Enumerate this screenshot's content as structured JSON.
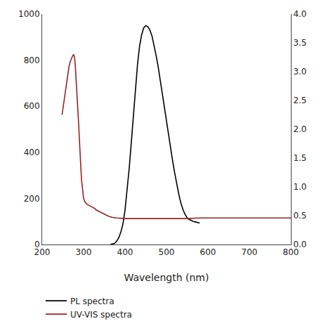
{
  "chart_data": {
    "type": "line",
    "x_label": "Wavelength (nm)",
    "xlim": [
      200,
      800
    ],
    "xticks": [
      200,
      300,
      400,
      500,
      600,
      700,
      800
    ],
    "ylim": [
      0,
      1000
    ],
    "yticks": [
      0,
      200,
      400,
      600,
      800,
      1000
    ],
    "y2lim": [
      0.0,
      4.0
    ],
    "y2ticks": [
      {
        "value": 0.0,
        "label": "0.0"
      },
      0.5,
      {
        "value": 1.0,
        "label": "1.0"
      },
      1.5,
      {
        "value": 2.0,
        "label": "2.0"
      },
      2.5,
      {
        "value": 3.0,
        "label": "3.0"
      },
      3.5,
      {
        "value": 4.0,
        "label": "4.0"
      }
    ],
    "grid": false,
    "legend": "lower left",
    "series": [
      {
        "name": "PL spectra",
        "color": "#000000",
        "x": [
          365,
          370,
          375,
          380,
          385,
          390,
          395,
          400,
          405,
          410,
          415,
          420,
          425,
          430,
          435,
          440,
          445,
          450,
          455,
          460,
          465,
          470,
          475,
          480,
          485,
          490,
          495,
          500,
          505,
          510,
          515,
          520,
          525,
          530,
          535,
          540,
          545,
          550,
          555,
          560,
          565,
          570,
          575,
          580
        ],
        "values": [
          0,
          2,
          5,
          15,
          30,
          55,
          90,
          150,
          230,
          330,
          440,
          560,
          680,
          780,
          860,
          910,
          940,
          950,
          945,
          930,
          905,
          865,
          820,
          770,
          710,
          650,
          590,
          530,
          470,
          415,
          360,
          308,
          258,
          215,
          178,
          150,
          130,
          115,
          108,
          103,
          100,
          98,
          96,
          93
        ]
      },
      {
        "name": "UV-VIS spectra",
        "color": "#9b2222",
        "axis": "y2",
        "x": [
          248,
          252,
          255,
          258,
          260,
          263,
          265,
          268,
          270,
          272,
          274,
          276,
          278,
          280,
          283,
          285,
          288,
          290,
          293,
          295,
          298,
          300,
          303,
          305,
          308,
          310,
          313,
          315,
          318,
          320,
          323,
          325,
          328,
          330,
          335,
          340,
          345,
          350,
          360,
          370,
          380,
          400,
          450,
          500,
          550,
          580,
          600,
          650,
          700,
          800
        ],
        "values": [
          2.25,
          2.45,
          2.62,
          2.78,
          2.9,
          3.02,
          3.1,
          3.18,
          3.22,
          3.26,
          3.28,
          3.3,
          3.25,
          3.1,
          2.8,
          2.48,
          2.1,
          1.72,
          1.38,
          1.12,
          0.92,
          0.8,
          0.74,
          0.72,
          0.7,
          0.69,
          0.68,
          0.67,
          0.66,
          0.65,
          0.64,
          0.63,
          0.62,
          0.6,
          0.58,
          0.56,
          0.54,
          0.52,
          0.49,
          0.47,
          0.46,
          0.45,
          0.45,
          0.45,
          0.45,
          0.46,
          0.46,
          0.46,
          0.46,
          0.46
        ]
      }
    ]
  }
}
